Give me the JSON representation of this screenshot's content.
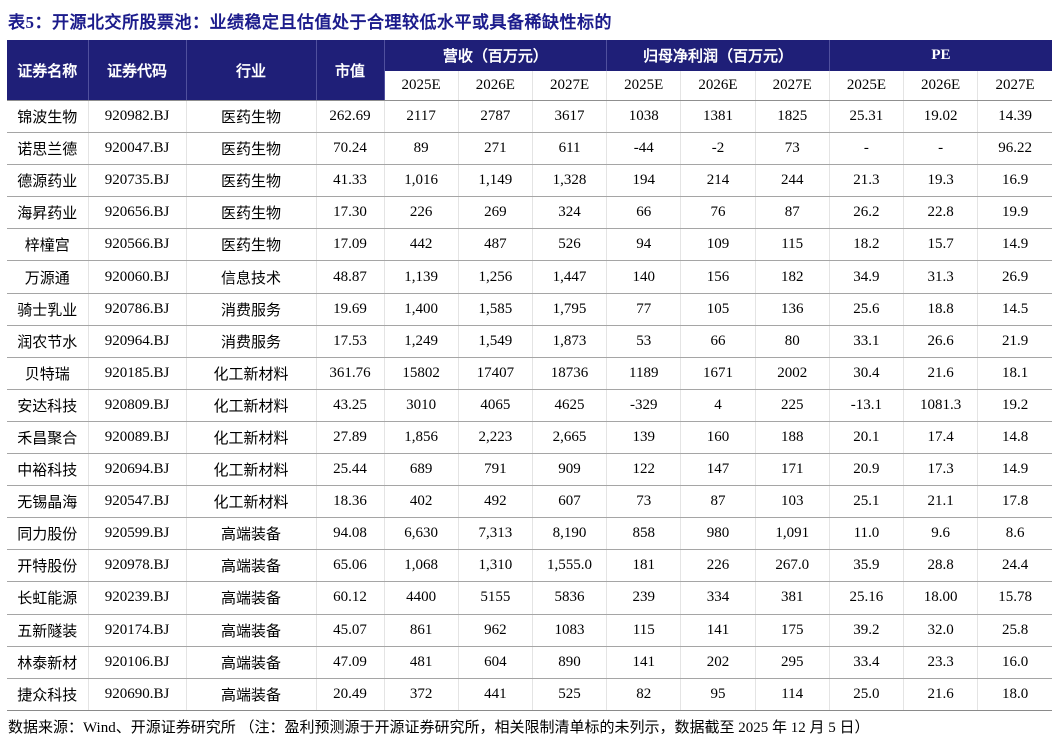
{
  "title": "表5：开源北交所股票池：业绩稳定且估值处于合理较低水平或具备稀缺性标的",
  "footer": "数据来源：Wind、开源证券研究所 （注：盈利预测源于开源证券研究所，相关限制清单标的未列示，数据截至 2025 年 12 月 5 日）",
  "colors": {
    "header_bg": "#1f1f78",
    "title_text": "#1c1c8c",
    "row_border": "#a5a5a5"
  },
  "table": {
    "col_headers": {
      "name": "证券名称",
      "code": "证券代码",
      "industry": "行业",
      "mktcap": "市值",
      "revenue_group": "营收（百万元）",
      "profit_group": "归母净利润（百万元）",
      "pe_group": "PE"
    },
    "years": [
      "2025E",
      "2026E",
      "2027E"
    ],
    "rows": [
      [
        "锦波生物",
        "920982.BJ",
        "医药生物",
        "262.69",
        "2117",
        "2787",
        "3617",
        "1038",
        "1381",
        "1825",
        "25.31",
        "19.02",
        "14.39"
      ],
      [
        "诺思兰德",
        "920047.BJ",
        "医药生物",
        "70.24",
        "89",
        "271",
        "611",
        "-44",
        "-2",
        "73",
        "-",
        "-",
        "96.22"
      ],
      [
        "德源药业",
        "920735.BJ",
        "医药生物",
        "41.33",
        "1,016",
        "1,149",
        "1,328",
        "194",
        "214",
        "244",
        "21.3",
        "19.3",
        "16.9"
      ],
      [
        "海昇药业",
        "920656.BJ",
        "医药生物",
        "17.30",
        "226",
        "269",
        "324",
        "66",
        "76",
        "87",
        "26.2",
        "22.8",
        "19.9"
      ],
      [
        "梓橦宫",
        "920566.BJ",
        "医药生物",
        "17.09",
        "442",
        "487",
        "526",
        "94",
        "109",
        "115",
        "18.2",
        "15.7",
        "14.9"
      ],
      [
        "万源通",
        "920060.BJ",
        "信息技术",
        "48.87",
        "1,139",
        "1,256",
        "1,447",
        "140",
        "156",
        "182",
        "34.9",
        "31.3",
        "26.9"
      ],
      [
        "骑士乳业",
        "920786.BJ",
        "消费服务",
        "19.69",
        "1,400",
        "1,585",
        "1,795",
        "77",
        "105",
        "136",
        "25.6",
        "18.8",
        "14.5"
      ],
      [
        "润农节水",
        "920964.BJ",
        "消费服务",
        "17.53",
        "1,249",
        "1,549",
        "1,873",
        "53",
        "66",
        "80",
        "33.1",
        "26.6",
        "21.9"
      ],
      [
        "贝特瑞",
        "920185.BJ",
        "化工新材料",
        "361.76",
        "15802",
        "17407",
        "18736",
        "1189",
        "1671",
        "2002",
        "30.4",
        "21.6",
        "18.1"
      ],
      [
        "安达科技",
        "920809.BJ",
        "化工新材料",
        "43.25",
        "3010",
        "4065",
        "4625",
        "-329",
        "4",
        "225",
        "-13.1",
        "1081.3",
        "19.2"
      ],
      [
        "禾昌聚合",
        "920089.BJ",
        "化工新材料",
        "27.89",
        "1,856",
        "2,223",
        "2,665",
        "139",
        "160",
        "188",
        "20.1",
        "17.4",
        "14.8"
      ],
      [
        "中裕科技",
        "920694.BJ",
        "化工新材料",
        "25.44",
        "689",
        "791",
        "909",
        "122",
        "147",
        "171",
        "20.9",
        "17.3",
        "14.9"
      ],
      [
        "无锡晶海",
        "920547.BJ",
        "化工新材料",
        "18.36",
        "402",
        "492",
        "607",
        "73",
        "87",
        "103",
        "25.1",
        "21.1",
        "17.8"
      ],
      [
        "同力股份",
        "920599.BJ",
        "高端装备",
        "94.08",
        "6,630",
        "7,313",
        "8,190",
        "858",
        "980",
        "1,091",
        "11.0",
        "9.6",
        "8.6"
      ],
      [
        "开特股份",
        "920978.BJ",
        "高端装备",
        "65.06",
        "1,068",
        "1,310",
        "1,555.0",
        "181",
        "226",
        "267.0",
        "35.9",
        "28.8",
        "24.4"
      ],
      [
        "长虹能源",
        "920239.BJ",
        "高端装备",
        "60.12",
        "4400",
        "5155",
        "5836",
        "239",
        "334",
        "381",
        "25.16",
        "18.00",
        "15.78"
      ],
      [
        "五新隧装",
        "920174.BJ",
        "高端装备",
        "45.07",
        "861",
        "962",
        "1083",
        "115",
        "141",
        "175",
        "39.2",
        "32.0",
        "25.8"
      ],
      [
        "林泰新材",
        "920106.BJ",
        "高端装备",
        "47.09",
        "481",
        "604",
        "890",
        "141",
        "202",
        "295",
        "33.4",
        "23.3",
        "16.0"
      ],
      [
        "捷众科技",
        "920690.BJ",
        "高端装备",
        "20.49",
        "372",
        "441",
        "525",
        "82",
        "95",
        "114",
        "25.0",
        "21.6",
        "18.0"
      ]
    ]
  }
}
